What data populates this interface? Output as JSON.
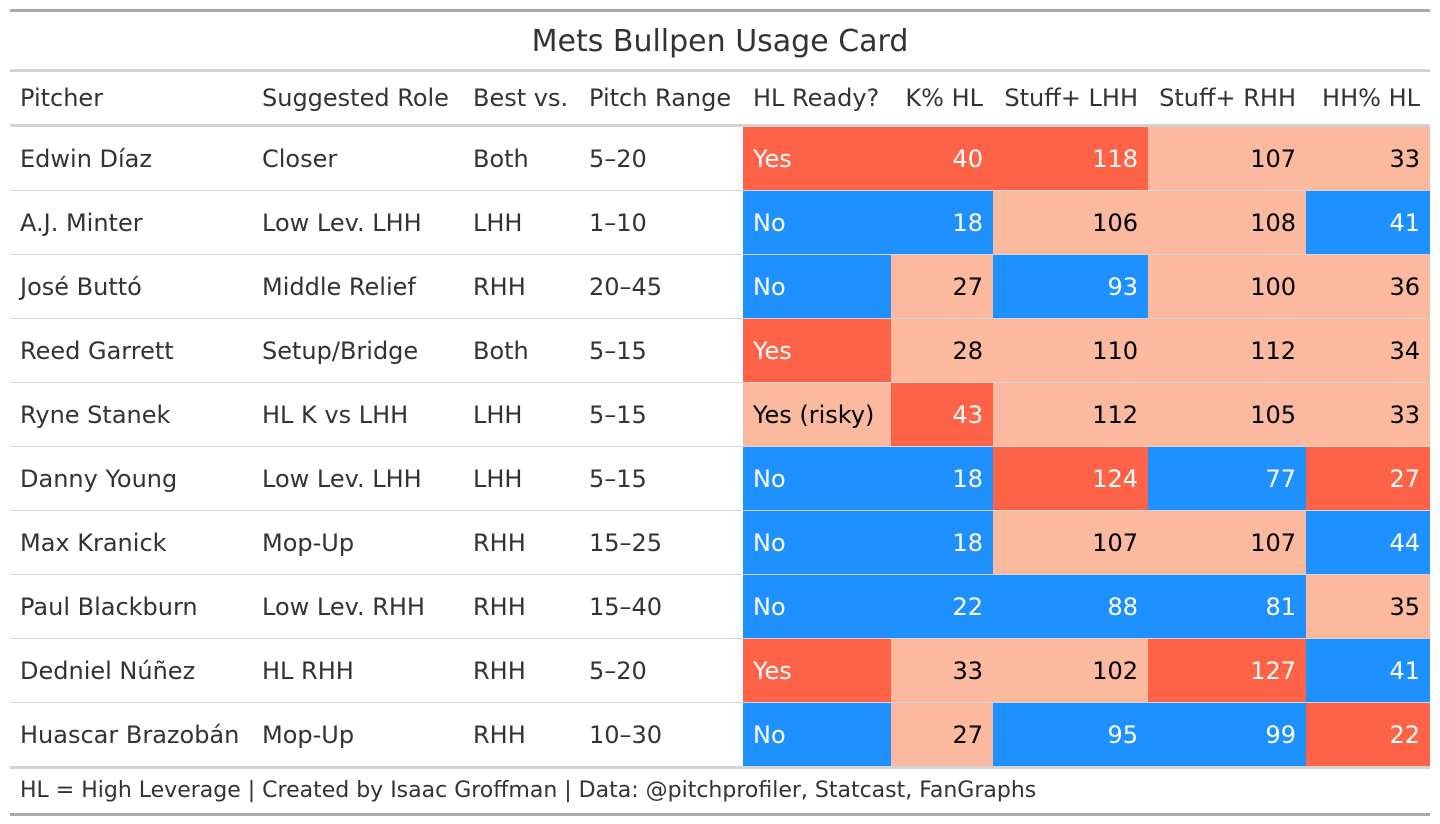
{
  "chart_data": {
    "type": "table",
    "title": "Mets Bullpen Usage Card",
    "columns": [
      "Pitcher",
      "Suggested Role",
      "Best vs.",
      "Pitch Range",
      "HL Ready?",
      "K% HL",
      "Stuff+ LHH",
      "Stuff+ RHH",
      "HH% HL"
    ],
    "rows": [
      {
        "pitcher": "Edwin Díaz",
        "role": "Closer",
        "best_vs": "Both",
        "pitch_range": "5–20",
        "hl_ready": "Yes",
        "k_pct_hl": 40,
        "stuff_lhh": 118,
        "stuff_rhh": 107,
        "hh_pct_hl": 33,
        "colors": {
          "hl_ready": "#ff6347",
          "k_pct_hl": "#ff6347",
          "stuff_lhh": "#ff6347",
          "stuff_rhh": "#fbb99f",
          "hh_pct_hl": "#fbb99f"
        }
      },
      {
        "pitcher": "A.J. Minter",
        "role": "Low Lev. LHH",
        "best_vs": "LHH",
        "pitch_range": "1–10",
        "hl_ready": "No",
        "k_pct_hl": 18,
        "stuff_lhh": 106,
        "stuff_rhh": 108,
        "hh_pct_hl": 41,
        "colors": {
          "hl_ready": "#1e90ff",
          "k_pct_hl": "#1e90ff",
          "stuff_lhh": "#fbb99f",
          "stuff_rhh": "#fbb99f",
          "hh_pct_hl": "#1e90ff"
        }
      },
      {
        "pitcher": "José Buttó",
        "role": "Middle Relief",
        "best_vs": "RHH",
        "pitch_range": "20–45",
        "hl_ready": "No",
        "k_pct_hl": 27,
        "stuff_lhh": 93,
        "stuff_rhh": 100,
        "hh_pct_hl": 36,
        "colors": {
          "hl_ready": "#1e90ff",
          "k_pct_hl": "#fbb99f",
          "stuff_lhh": "#1e90ff",
          "stuff_rhh": "#fbb99f",
          "hh_pct_hl": "#fbb99f"
        }
      },
      {
        "pitcher": "Reed Garrett",
        "role": "Setup/Bridge",
        "best_vs": "Both",
        "pitch_range": "5–15",
        "hl_ready": "Yes",
        "k_pct_hl": 28,
        "stuff_lhh": 110,
        "stuff_rhh": 112,
        "hh_pct_hl": 34,
        "colors": {
          "hl_ready": "#ff6347",
          "k_pct_hl": "#fbb99f",
          "stuff_lhh": "#fbb99f",
          "stuff_rhh": "#fbb99f",
          "hh_pct_hl": "#fbb99f"
        }
      },
      {
        "pitcher": "Ryne Stanek",
        "role": "HL K vs LHH",
        "best_vs": "LHH",
        "pitch_range": "5–15",
        "hl_ready": "Yes (risky)",
        "k_pct_hl": 43,
        "stuff_lhh": 112,
        "stuff_rhh": 105,
        "hh_pct_hl": 33,
        "colors": {
          "hl_ready": "#fbb99f",
          "k_pct_hl": "#ff6347",
          "stuff_lhh": "#fbb99f",
          "stuff_rhh": "#fbb99f",
          "hh_pct_hl": "#fbb99f"
        }
      },
      {
        "pitcher": "Danny Young",
        "role": "Low Lev. LHH",
        "best_vs": "LHH",
        "pitch_range": "5–15",
        "hl_ready": "No",
        "k_pct_hl": 18,
        "stuff_lhh": 124,
        "stuff_rhh": 77,
        "hh_pct_hl": 27,
        "colors": {
          "hl_ready": "#1e90ff",
          "k_pct_hl": "#1e90ff",
          "stuff_lhh": "#ff6347",
          "stuff_rhh": "#1e90ff",
          "hh_pct_hl": "#ff6347"
        }
      },
      {
        "pitcher": "Max Kranick",
        "role": "Mop-Up",
        "best_vs": "RHH",
        "pitch_range": "15–25",
        "hl_ready": "No",
        "k_pct_hl": 18,
        "stuff_lhh": 107,
        "stuff_rhh": 107,
        "hh_pct_hl": 44,
        "colors": {
          "hl_ready": "#1e90ff",
          "k_pct_hl": "#1e90ff",
          "stuff_lhh": "#fbb99f",
          "stuff_rhh": "#fbb99f",
          "hh_pct_hl": "#1e90ff"
        }
      },
      {
        "pitcher": "Paul Blackburn",
        "role": "Low Lev. RHH",
        "best_vs": "RHH",
        "pitch_range": "15–40",
        "hl_ready": "No",
        "k_pct_hl": 22,
        "stuff_lhh": 88,
        "stuff_rhh": 81,
        "hh_pct_hl": 35,
        "colors": {
          "hl_ready": "#1e90ff",
          "k_pct_hl": "#1e90ff",
          "stuff_lhh": "#1e90ff",
          "stuff_rhh": "#1e90ff",
          "hh_pct_hl": "#fbb99f"
        }
      },
      {
        "pitcher": "Dedniel Núñez",
        "role": "HL RHH",
        "best_vs": "RHH",
        "pitch_range": "5–20",
        "hl_ready": "Yes",
        "k_pct_hl": 33,
        "stuff_lhh": 102,
        "stuff_rhh": 127,
        "hh_pct_hl": 41,
        "colors": {
          "hl_ready": "#ff6347",
          "k_pct_hl": "#fbb99f",
          "stuff_lhh": "#fbb99f",
          "stuff_rhh": "#ff6347",
          "hh_pct_hl": "#1e90ff"
        }
      },
      {
        "pitcher": "Huascar Brazobán",
        "role": "Mop-Up",
        "best_vs": "RHH",
        "pitch_range": "10–30",
        "hl_ready": "No",
        "k_pct_hl": 27,
        "stuff_lhh": 95,
        "stuff_rhh": 99,
        "hh_pct_hl": 22,
        "colors": {
          "hl_ready": "#1e90ff",
          "k_pct_hl": "#fbb99f",
          "stuff_lhh": "#1e90ff",
          "stuff_rhh": "#1e90ff",
          "hh_pct_hl": "#ff6347"
        }
      }
    ],
    "footnote": "HL = High Leverage | Created by Isaac Groffman | Data: @pitchprofiler, Statcast, FanGraphs",
    "palette": {
      "high": "#ff6347",
      "mid": "#fbb99f",
      "low": "#1e90ff"
    }
  }
}
